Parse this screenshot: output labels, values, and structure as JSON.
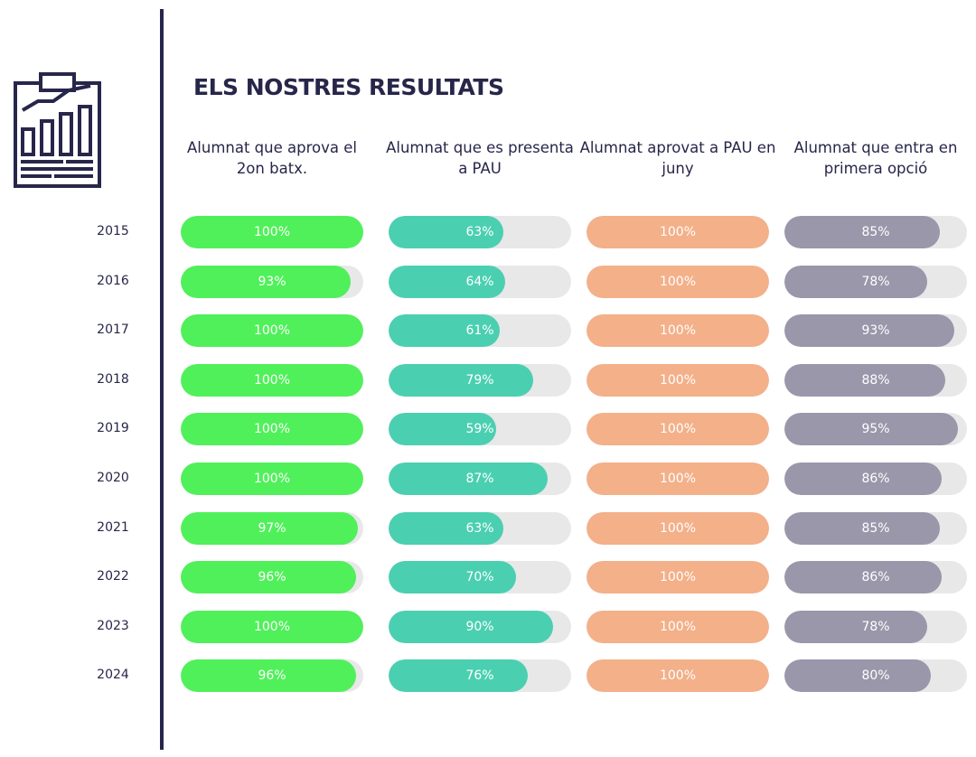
{
  "title": "ELS NOSTRES RESULTATS",
  "icon": "clipboard-chart-icon",
  "chart_data": {
    "type": "bar",
    "orientation": "horizontal-progress",
    "categories": [
      "2015",
      "2016",
      "2017",
      "2018",
      "2019",
      "2020",
      "2021",
      "2022",
      "2023",
      "2024"
    ],
    "xlim": [
      0,
      100
    ],
    "unit": "%",
    "series": [
      {
        "name": "Alumnat que aprova el 2on batx.",
        "color": "#50f05a",
        "values": [
          100,
          93,
          100,
          100,
          100,
          100,
          97,
          96,
          100,
          96
        ]
      },
      {
        "name": "Alumnat que es presenta a PAU",
        "color": "#4bcfb1",
        "values": [
          63,
          64,
          61,
          79,
          59,
          87,
          63,
          70,
          90,
          76
        ]
      },
      {
        "name": "Alumnat aprovat a PAU en juny",
        "color": "#f3b089",
        "values": [
          100,
          100,
          100,
          100,
          100,
          100,
          100,
          100,
          100,
          100
        ]
      },
      {
        "name": "Alumnat que entra en primera opció",
        "color": "#9a97ab",
        "values": [
          85,
          78,
          93,
          88,
          95,
          86,
          85,
          86,
          78,
          80
        ]
      }
    ],
    "track_color": "#e8e8e8"
  }
}
